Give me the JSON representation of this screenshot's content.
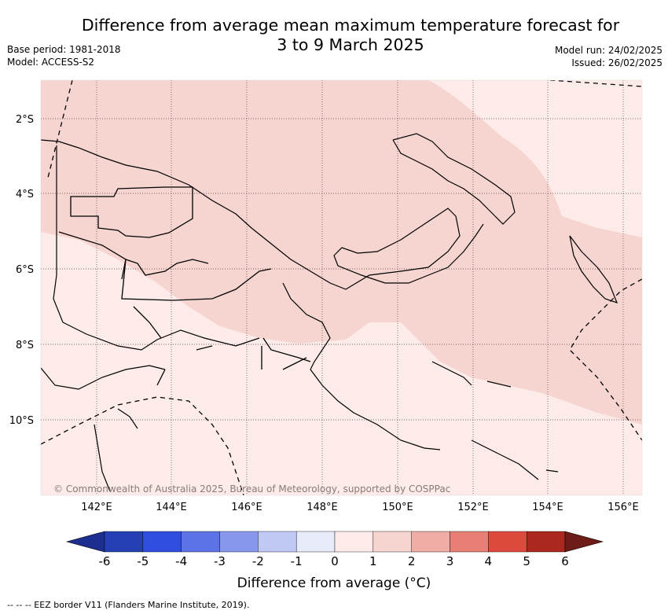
{
  "title_line1": "Difference from average mean maximum temperature forecast for",
  "title_line2": "3 to 9 March 2025",
  "base_period": "Base period: 1981-2018",
  "model": "Model: ACCESS-S2",
  "model_run": "Model run: 24/02/2025",
  "issued": "Issued: 26/02/2025",
  "copyright": "© Commonwealth of Australia 2025, Bureau of Meteorology, supported by COSPPac",
  "lat_ticks": [
    "2°S",
    "4°S",
    "6°S",
    "8°S",
    "10°S"
  ],
  "lon_ticks": [
    "142°E",
    "144°E",
    "146°E",
    "148°E",
    "150°E",
    "152°E",
    "154°E",
    "156°E"
  ],
  "colorbar": {
    "labels": [
      "-6",
      "-5",
      "-4",
      "-3",
      "-2",
      "-1",
      "0",
      "1",
      "2",
      "3",
      "4",
      "5",
      "6"
    ],
    "colors": [
      "#1c2e8f",
      "#2440b4",
      "#2f4ee0",
      "#5b73e6",
      "#8797ec",
      "#c0c8f4",
      "#e8ecfa",
      "#fcebe8",
      "#f6d4d0",
      "#f0ada6",
      "#e77f76",
      "#dc4a3e",
      "#ab2820",
      "#6e1c17"
    ],
    "title": "Difference from average (°C)"
  },
  "legend_footer": "-- --  -- EEZ border V11 (Flanders Marine Institute, 2019)."
}
